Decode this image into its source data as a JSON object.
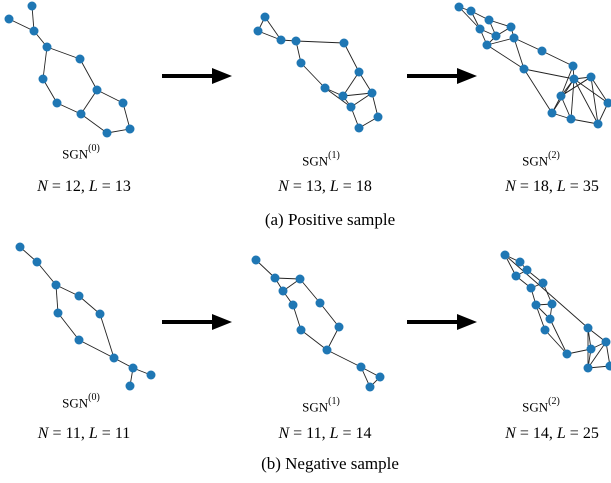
{
  "colors": {
    "node": "#1f77b4",
    "edge": "#222222",
    "arrow": "#000000"
  },
  "positive": {
    "caption": "(a) Positive sample",
    "graphs": [
      {
        "sgn_base": "SGN",
        "sgn_sup": "(0)",
        "n_label": "N",
        "n_value": "12",
        "l_label": "L",
        "l_value": "13"
      },
      {
        "sgn_base": "SGN",
        "sgn_sup": "(1)",
        "n_label": "N",
        "n_value": "13",
        "l_label": "L",
        "l_value": "18"
      },
      {
        "sgn_base": "SGN",
        "sgn_sup": "(2)",
        "n_label": "N",
        "n_value": "18",
        "l_label": "L",
        "l_value": "35"
      }
    ]
  },
  "negative": {
    "caption": "(b) Negative sample",
    "graphs": [
      {
        "sgn_base": "SGN",
        "sgn_sup": "(0)",
        "n_label": "N",
        "n_value": "11",
        "l_label": "L",
        "l_value": "11"
      },
      {
        "sgn_base": "SGN",
        "sgn_sup": "(1)",
        "n_label": "N",
        "n_value": "11",
        "l_label": "L",
        "l_value": "14"
      },
      {
        "sgn_base": "SGN",
        "sgn_sup": "(2)",
        "n_label": "N",
        "n_value": "14",
        "l_label": "L",
        "l_value": "25"
      }
    ]
  }
}
